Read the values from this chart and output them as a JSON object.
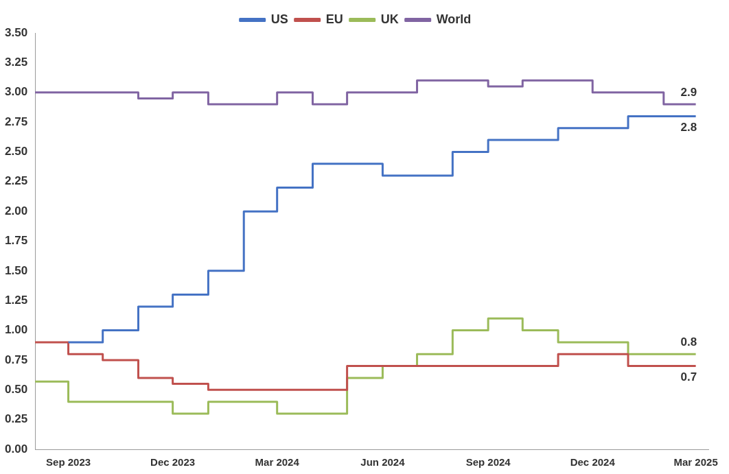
{
  "chart_data": {
    "type": "step",
    "xlim": [
      "2023-08-03",
      "2025-03-12"
    ],
    "xticks": [
      {
        "value": "2023-09-01",
        "label": "Sep 2023"
      },
      {
        "value": "2023-12-01",
        "label": "Dec 2023"
      },
      {
        "value": "2024-03-01",
        "label": "Mar 2024"
      },
      {
        "value": "2024-06-01",
        "label": "Jun 2024"
      },
      {
        "value": "2024-09-01",
        "label": "Sep 2024"
      },
      {
        "value": "2024-12-01",
        "label": "Dec 2024"
      },
      {
        "value": "2025-03-01",
        "label": "Mar 2025"
      }
    ],
    "ylim": [
      0,
      3.5
    ],
    "yticks": [
      {
        "value": 0,
        "label": "0.00"
      },
      {
        "value": 0.25,
        "label": "0.25"
      },
      {
        "value": 0.5,
        "label": "0.50"
      },
      {
        "value": 0.75,
        "label": "0.75"
      },
      {
        "value": 1,
        "label": "1.00"
      },
      {
        "value": 1.25,
        "label": "1.25"
      },
      {
        "value": 1.5,
        "label": "1.50"
      },
      {
        "value": 1.75,
        "label": "1.75"
      },
      {
        "value": 2,
        "label": "2.00"
      },
      {
        "value": 2.25,
        "label": "2.25"
      },
      {
        "value": 2.5,
        "label": "2.50"
      },
      {
        "value": 2.75,
        "label": "2.75"
      },
      {
        "value": 3,
        "label": "3.00"
      },
      {
        "value": 3.25,
        "label": "3.25"
      },
      {
        "value": 3.5,
        "label": "3.50"
      }
    ],
    "grid": false,
    "legend": "top",
    "line_style": "solid",
    "marker": "none",
    "series": [
      {
        "name": "US",
        "color": "#4472c4",
        "x": [
          "2023-09-01",
          "2023-10-01",
          "2023-11-01",
          "2023-12-01",
          "2024-01-01",
          "2024-02-01",
          "2024-03-01",
          "2024-04-01",
          "2024-06-01",
          "2024-08-01",
          "2024-09-01",
          "2024-11-01",
          "2025-01-01",
          "2025-03-01"
        ],
        "values": [
          0.9,
          1.0,
          1.2,
          1.3,
          1.5,
          2.0,
          2.2,
          2.4,
          2.3,
          2.5,
          2.6,
          2.7,
          2.8,
          2.8
        ]
      },
      {
        "name": "EU",
        "color": "#c0504d",
        "x": [
          "2023-08-03",
          "2023-09-01",
          "2023-10-01",
          "2023-11-01",
          "2023-12-01",
          "2024-01-01",
          "2024-05-01",
          "2024-11-01",
          "2025-01-01",
          "2025-03-01"
        ],
        "values": [
          0.9,
          0.8,
          0.75,
          0.6,
          0.55,
          0.5,
          0.7,
          0.8,
          0.7,
          0.7
        ]
      },
      {
        "name": "UK",
        "color": "#9bbb59",
        "x": [
          "2023-08-03",
          "2023-09-01",
          "2023-12-01",
          "2024-01-01",
          "2024-03-01",
          "2024-05-01",
          "2024-06-01",
          "2024-07-01",
          "2024-08-01",
          "2024-09-01",
          "2024-10-01",
          "2024-11-01",
          "2025-01-01",
          "2025-03-01"
        ],
        "values": [
          0.57,
          0.4,
          0.3,
          0.4,
          0.3,
          0.6,
          0.7,
          0.8,
          1.0,
          1.1,
          1.0,
          0.9,
          0.8,
          0.8
        ]
      },
      {
        "name": "World",
        "color": "#8064a2",
        "x": [
          "2023-08-03",
          "2023-11-01",
          "2023-12-01",
          "2024-01-01",
          "2024-03-01",
          "2024-04-01",
          "2024-05-01",
          "2024-07-01",
          "2024-09-01",
          "2024-10-01",
          "2024-11-01",
          "2024-12-01",
          "2025-02-01",
          "2025-03-01"
        ],
        "values": [
          3.0,
          2.95,
          3.0,
          2.9,
          3.0,
          2.9,
          3.0,
          3.1,
          3.05,
          3.1,
          3.1,
          3.0,
          2.9,
          2.9
        ]
      }
    ],
    "annotations": [
      {
        "text": "2.9",
        "x": "2025-03-01",
        "y": 2.9
      },
      {
        "text": "2.8",
        "x": "2025-03-01",
        "y": 2.8
      },
      {
        "text": "0.8",
        "x": "2025-03-01",
        "y": 0.8
      },
      {
        "text": "0.7",
        "x": "2025-03-01",
        "y": 0.7
      }
    ]
  }
}
